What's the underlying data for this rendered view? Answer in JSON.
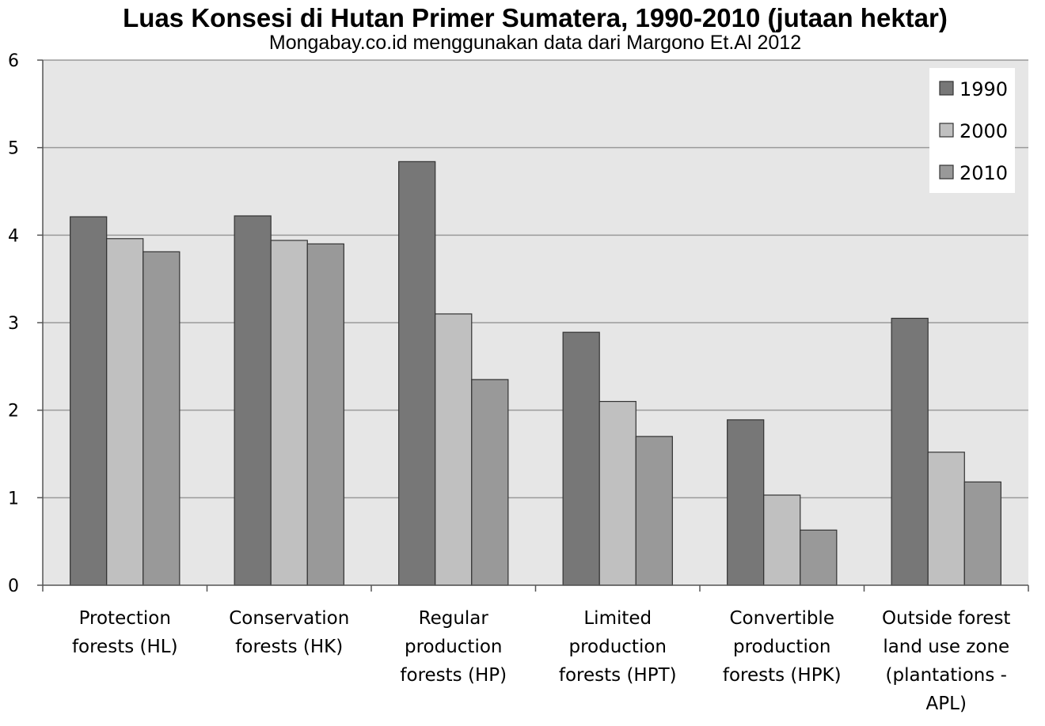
{
  "chart_data": {
    "type": "bar",
    "title": "Luas Konsesi di Hutan Primer Sumatera, 1990-2010 (jutaan hektar)",
    "subtitle": "Mongabay.co.id menggunakan data dari Margono Et.Al 2012",
    "categories": [
      [
        "Protection",
        "forests (HL)"
      ],
      [
        "Conservation",
        "forests (HK)"
      ],
      [
        "Regular",
        "production",
        "forests (HP)"
      ],
      [
        "Limited",
        "production",
        "forests (HPT)"
      ],
      [
        "Convertible",
        "production",
        "forests (HPK)"
      ],
      [
        "Outside forest",
        "land use zone",
        "(plantations -",
        "APL)"
      ]
    ],
    "series": [
      {
        "name": "1990",
        "color": "#777777",
        "values": [
          4.21,
          4.22,
          4.84,
          2.89,
          1.89,
          3.05
        ]
      },
      {
        "name": "2000",
        "color": "#c0c0c0",
        "values": [
          3.96,
          3.94,
          3.1,
          2.1,
          1.03,
          1.52
        ]
      },
      {
        "name": "2010",
        "color": "#999999",
        "values": [
          3.81,
          3.9,
          2.35,
          1.7,
          0.63,
          1.18
        ]
      }
    ],
    "yticks": [
      "0",
      "1",
      "2",
      "3",
      "4",
      "5",
      "6"
    ],
    "ylim": [
      0,
      6
    ],
    "grid": true,
    "legend_position": "top-right",
    "plot_background": "#e6e6e6"
  }
}
